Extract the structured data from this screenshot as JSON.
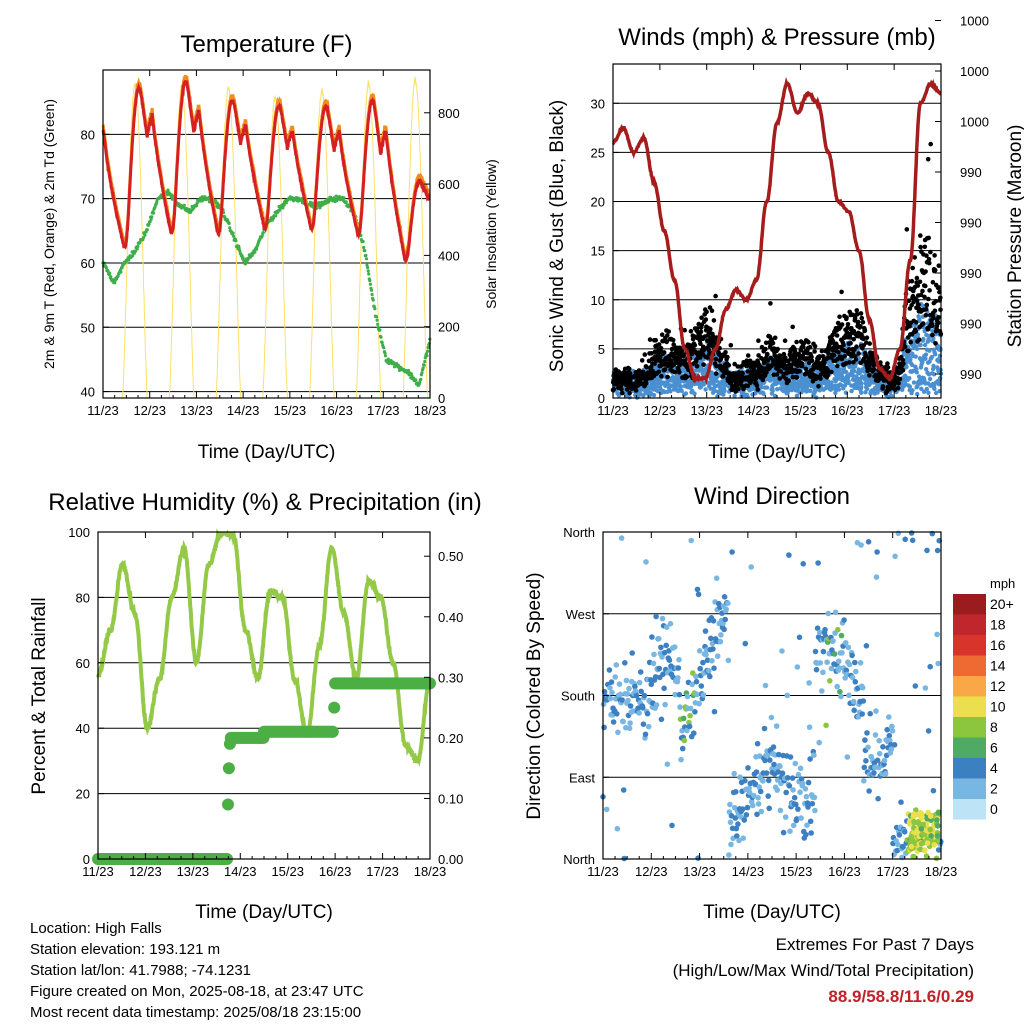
{
  "xticks": [
    "11/23",
    "12/23",
    "13/23",
    "14/23",
    "15/23",
    "16/23",
    "17/23",
    "18/23"
  ],
  "chart_data": [
    {
      "type": "line",
      "title": "Temperature (F)",
      "xlabel": "Time (Day/UTC)",
      "ylabel": "2m & 9m T (Red, Orange) & 2m Td (Green)",
      "ylabel_right": "Solar Insolation (Yellow)",
      "ylim": [
        39,
        90
      ],
      "yticks": [
        40,
        50,
        60,
        70,
        80
      ],
      "ylim_right": [
        0,
        920
      ],
      "yticks_right": [
        0,
        200,
        400,
        600,
        800
      ],
      "grid": true,
      "series": [
        {
          "key": "t2m",
          "color": "#d42020",
          "days_min": [
            61,
            63,
            63,
            64,
            64,
            63,
            59,
            65
          ],
          "days_max": [
            88,
            89,
            86,
            85,
            85,
            86,
            73
          ]
        },
        {
          "key": "t9m",
          "color": "#f28c1e"
        },
        {
          "key": "td2m",
          "color": "#3fae49",
          "approx": [
            60,
            57,
            60,
            62,
            65,
            70,
            71,
            69,
            68,
            70,
            70,
            68,
            64,
            60,
            62,
            66,
            68,
            70,
            70,
            69,
            69,
            70,
            70,
            68,
            62,
            52,
            45,
            44,
            43,
            41,
            48
          ]
        },
        {
          "key": "solar",
          "color": "#ffe066",
          "daily_peak": [
            880,
            870,
            870,
            840,
            860,
            880,
            890,
            0
          ]
        }
      ]
    },
    {
      "type": "scatter",
      "title": "Winds (mph) & Pressure (mb)",
      "xlabel": "Time (Day/UTC)",
      "ylabel": "Sonic Wind & Gust (Blue, Black)",
      "ylabel_right": "Station Pressure (Maroon)",
      "ylim": [
        0,
        34
      ],
      "yticks": [
        0,
        5,
        10,
        15,
        20,
        25,
        30
      ],
      "yticks_right": [
        "990",
        "990",
        "990",
        "990",
        "990",
        "1000",
        "1000",
        "1000"
      ],
      "grid": true,
      "series": [
        {
          "key": "wind",
          "color": "#4a90d0"
        },
        {
          "key": "gust",
          "color": "#000000"
        },
        {
          "key": "pressure",
          "color": "#a51c1c",
          "approx_plot_units": [
            26,
            27.5,
            25,
            26.5,
            22,
            17,
            12,
            5,
            2,
            2,
            5,
            9,
            11,
            10,
            12,
            20,
            28,
            32,
            29,
            31,
            30,
            25,
            20,
            19,
            15,
            8,
            3,
            2,
            5,
            14,
            30,
            32,
            31
          ]
        }
      ]
    },
    {
      "type": "line",
      "title": "Relative Humidity (%) & Precipitation (in)",
      "xlabel": "Time (Day/UTC)",
      "ylabel": "Percent & Total Rainfall",
      "ylim": [
        0,
        100
      ],
      "yticks": [
        0,
        20,
        40,
        60,
        80,
        100
      ],
      "yticks_right": [
        "0.00",
        "0.10",
        "0.20",
        "0.30",
        "0.40",
        "0.50"
      ],
      "ylim_right": [
        0,
        0.54
      ],
      "grid": true,
      "series": [
        {
          "key": "rh",
          "color": "#93c947",
          "approx": [
            56,
            70,
            90,
            75,
            40,
            55,
            80,
            95,
            60,
            90,
            100,
            99,
            70,
            55,
            82,
            80,
            55,
            38,
            65,
            95,
            75,
            55,
            85,
            80,
            60,
            35,
            30,
            55
          ]
        },
        {
          "key": "precip",
          "color": "#4caf45",
          "steps": [
            [
              0,
              0
            ],
            [
              2.72,
              0
            ],
            [
              2.74,
              0.09
            ],
            [
              2.76,
              0.15
            ],
            [
              2.78,
              0.19
            ],
            [
              2.8,
              0.2
            ],
            [
              3.4,
              0.2
            ],
            [
              3.5,
              0.21
            ],
            [
              4.95,
              0.21
            ],
            [
              4.98,
              0.25
            ],
            [
              5.0,
              0.29
            ],
            [
              7.0,
              0.29
            ]
          ]
        }
      ]
    },
    {
      "type": "scatter",
      "title": "Wind Direction",
      "xlabel": "Time (Day/UTC)",
      "ylabel": "Direction (Colored By Speed)",
      "yticks": [
        "North",
        "East",
        "South",
        "West",
        "North"
      ],
      "ylim": [
        0,
        360
      ],
      "grid": true,
      "legend_title": "mph",
      "legend_position": "right",
      "legend_labels": [
        "20+",
        "18",
        "16",
        "14",
        "12",
        "10",
        "8",
        "6",
        "4",
        "2",
        "0"
      ],
      "legend_colors": [
        "#9b1b1e",
        "#c0272d",
        "#d9342b",
        "#ef6a32",
        "#f9a848",
        "#ebdf4d",
        "#8cc63f",
        "#4faa63",
        "#3d80c2",
        "#79b7e3",
        "#bde3f6"
      ]
    }
  ],
  "info": {
    "location": "Location: High Falls",
    "elevation": "Station elevation: 193.121 m",
    "latlon": "Station lat/lon: 41.7988; -74.1231",
    "created": "Figure created on Mon, 2025-08-18, at 23:47 UTC",
    "recent": "Most recent data timestamp: 2025/08/18 23:15:00"
  },
  "extremes": {
    "line1": "Extremes For Past 7 Days",
    "line2": "(High/Low/Max Wind/Total Precipitation)",
    "values": "88.9/58.8/11.6/0.29"
  }
}
